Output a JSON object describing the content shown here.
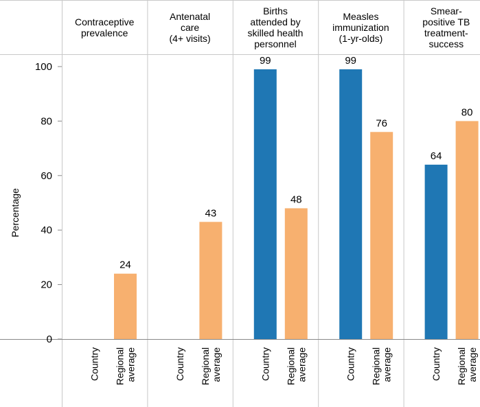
{
  "chart_data": {
    "type": "bar",
    "title": "",
    "xlabel": "",
    "ylabel": "Percentage",
    "ylim": [
      0,
      100
    ],
    "yticks": [
      0,
      20,
      40,
      60,
      80,
      100
    ],
    "grid": false,
    "groups": [
      {
        "label": [
          "Contraceptive",
          "prevalence"
        ],
        "bars": [
          {
            "category": "Country",
            "value": null
          },
          {
            "category": "Regional average",
            "value": 24
          }
        ]
      },
      {
        "label": [
          "Antenatal",
          "care",
          "(4+ visits)"
        ],
        "bars": [
          {
            "category": "Country",
            "value": null
          },
          {
            "category": "Regional average",
            "value": 43
          }
        ]
      },
      {
        "label": [
          "Births",
          "attended by",
          "skilled health",
          "personnel"
        ],
        "bars": [
          {
            "category": "Country",
            "value": 99
          },
          {
            "category": "Regional average",
            "value": 48
          }
        ]
      },
      {
        "label": [
          "Measles",
          "immunization",
          "(1-yr-olds)"
        ],
        "bars": [
          {
            "category": "Country",
            "value": 99
          },
          {
            "category": "Regional average",
            "value": 76
          }
        ]
      },
      {
        "label": [
          "Smear-",
          "positive TB",
          "treatment-",
          "success"
        ],
        "bars": [
          {
            "category": "Country",
            "value": 64
          },
          {
            "category": "Regional average",
            "value": 80
          }
        ]
      }
    ],
    "bar_labels": {
      "Country": [
        "Country"
      ],
      "Regional average": [
        "Regional",
        "average"
      ]
    },
    "colors": {
      "Country": "#1f77b4",
      "Regional average": "#f7b06f",
      "grid_lines": "#c8c8c8",
      "axis": "#888888"
    }
  }
}
